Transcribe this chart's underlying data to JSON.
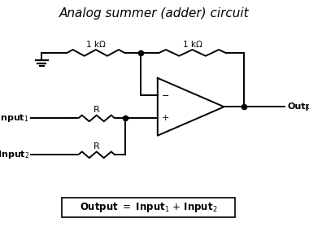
{
  "title": "Analog summer (adder) circuit",
  "title_fontsize": 11,
  "title_style": "italic",
  "bg_color": "#ffffff",
  "line_color": "#000000",
  "line_width": 1.4,
  "resistor_label_top1": "1 kΩ",
  "resistor_label_top2": "1 kΩ",
  "resistor_label_mid1": "R",
  "resistor_label_mid2": "R",
  "output_label": "Output"
}
